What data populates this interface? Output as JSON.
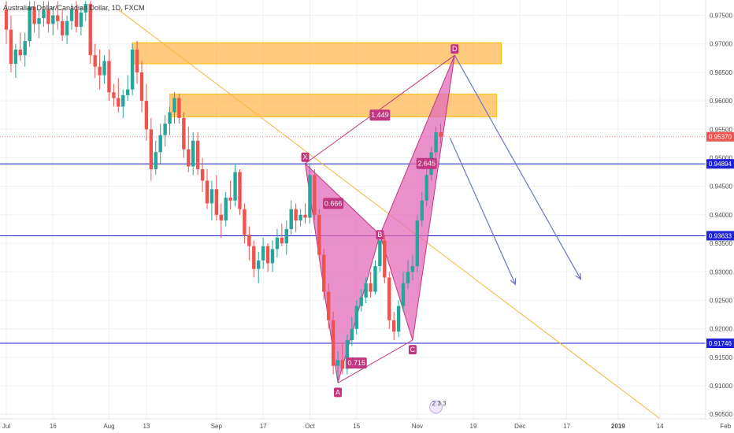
{
  "chart_data": {
    "type": "candlestick",
    "title": "Australian Dollar/Canadian Dollar, 1D, FXCM",
    "x_ticks": [
      "Jul",
      "16",
      "Aug",
      "13",
      "Sep",
      "17",
      "Oct",
      "15",
      "Nov",
      "19",
      "Dec",
      "17",
      "2019",
      "14",
      "Feb"
    ],
    "y_ticks": [
      "0.97500",
      "0.97000",
      "0.96500",
      "0.96000",
      "0.95500",
      "0.95000",
      "0.94500",
      "0.94000",
      "0.93500",
      "0.93000",
      "0.92500",
      "0.92000",
      "0.91500",
      "0.91000",
      "0.90500"
    ],
    "ylim": [
      0.9042,
      0.9777
    ],
    "up_color": "#26a69a",
    "down_color": "#ef5350",
    "candles": [
      {
        "x": "Jul 2",
        "o": 0.976,
        "h": 0.9775,
        "l": 0.97,
        "c": 0.9725
      },
      {
        "x": "Jul 3",
        "o": 0.9725,
        "h": 0.975,
        "l": 0.965,
        "c": 0.9665
      },
      {
        "x": "Jul 4",
        "o": 0.9665,
        "h": 0.97,
        "l": 0.964,
        "c": 0.969
      },
      {
        "x": "Jul 5",
        "o": 0.969,
        "h": 0.972,
        "l": 0.967,
        "c": 0.968
      },
      {
        "x": "Jul 6",
        "o": 0.968,
        "h": 0.972,
        "l": 0.966,
        "c": 0.9705
      },
      {
        "x": "Jul 9",
        "o": 0.9705,
        "h": 0.9775,
        "l": 0.9695,
        "c": 0.9765
      },
      {
        "x": "Jul 10",
        "o": 0.9765,
        "h": 0.9775,
        "l": 0.972,
        "c": 0.9735
      },
      {
        "x": "Jul 11",
        "o": 0.9735,
        "h": 0.976,
        "l": 0.971,
        "c": 0.9745
      },
      {
        "x": "Jul 12",
        "o": 0.9745,
        "h": 0.9775,
        "l": 0.973,
        "c": 0.976
      },
      {
        "x": "Jul 13",
        "o": 0.976,
        "h": 0.9775,
        "l": 0.972,
        "c": 0.9735
      },
      {
        "x": "Jul 16",
        "o": 0.9735,
        "h": 0.9765,
        "l": 0.9715,
        "c": 0.975
      },
      {
        "x": "Jul 17",
        "o": 0.975,
        "h": 0.9775,
        "l": 0.9725,
        "c": 0.974
      },
      {
        "x": "Jul 18",
        "o": 0.974,
        "h": 0.976,
        "l": 0.9705,
        "c": 0.9715
      },
      {
        "x": "Jul 19",
        "o": 0.9715,
        "h": 0.975,
        "l": 0.97,
        "c": 0.974
      },
      {
        "x": "Jul 20",
        "o": 0.974,
        "h": 0.977,
        "l": 0.9725,
        "c": 0.976
      },
      {
        "x": "Jul 23",
        "o": 0.976,
        "h": 0.9775,
        "l": 0.972,
        "c": 0.973
      },
      {
        "x": "Jul 24",
        "o": 0.973,
        "h": 0.9765,
        "l": 0.9715,
        "c": 0.9755
      },
      {
        "x": "Jul 25",
        "o": 0.9755,
        "h": 0.9775,
        "l": 0.974,
        "c": 0.977
      },
      {
        "x": "Jul 26",
        "o": 0.977,
        "h": 0.9775,
        "l": 0.9665,
        "c": 0.968
      },
      {
        "x": "Jul 27",
        "o": 0.968,
        "h": 0.97,
        "l": 0.964,
        "c": 0.966
      },
      {
        "x": "Jul 30",
        "o": 0.966,
        "h": 0.969,
        "l": 0.962,
        "c": 0.9645
      },
      {
        "x": "Jul 31",
        "o": 0.9645,
        "h": 0.968,
        "l": 0.963,
        "c": 0.967
      },
      {
        "x": "Aug 1",
        "o": 0.967,
        "h": 0.969,
        "l": 0.96,
        "c": 0.9615
      },
      {
        "x": "Aug 2",
        "o": 0.9615,
        "h": 0.963,
        "l": 0.959,
        "c": 0.9605
      },
      {
        "x": "Aug 3",
        "o": 0.9605,
        "h": 0.964,
        "l": 0.958,
        "c": 0.959
      },
      {
        "x": "Aug 6",
        "o": 0.959,
        "h": 0.962,
        "l": 0.957,
        "c": 0.961
      },
      {
        "x": "Aug 7",
        "o": 0.961,
        "h": 0.9645,
        "l": 0.96,
        "c": 0.962
      },
      {
        "x": "Aug 8",
        "o": 0.962,
        "h": 0.97,
        "l": 0.961,
        "c": 0.969
      },
      {
        "x": "Aug 9",
        "o": 0.969,
        "h": 0.9705,
        "l": 0.963,
        "c": 0.965
      },
      {
        "x": "Aug 10",
        "o": 0.965,
        "h": 0.967,
        "l": 0.958,
        "c": 0.96
      },
      {
        "x": "Aug 13",
        "o": 0.96,
        "h": 0.963,
        "l": 0.953,
        "c": 0.955
      },
      {
        "x": "Aug 14",
        "o": 0.955,
        "h": 0.957,
        "l": 0.946,
        "c": 0.948
      },
      {
        "x": "Aug 15",
        "o": 0.948,
        "h": 0.953,
        "l": 0.947,
        "c": 0.951
      },
      {
        "x": "Aug 16",
        "o": 0.951,
        "h": 0.956,
        "l": 0.949,
        "c": 0.954
      },
      {
        "x": "Aug 17",
        "o": 0.954,
        "h": 0.9575,
        "l": 0.952,
        "c": 0.956
      },
      {
        "x": "Aug 20",
        "o": 0.956,
        "h": 0.959,
        "l": 0.954,
        "c": 0.958
      },
      {
        "x": "Aug 21",
        "o": 0.958,
        "h": 0.9615,
        "l": 0.956,
        "c": 0.9605
      },
      {
        "x": "Aug 22",
        "o": 0.9605,
        "h": 0.9612,
        "l": 0.956,
        "c": 0.957
      },
      {
        "x": "Aug 23",
        "o": 0.957,
        "h": 0.958,
        "l": 0.95,
        "c": 0.9515
      },
      {
        "x": "Aug 24",
        "o": 0.9515,
        "h": 0.9555,
        "l": 0.9475,
        "c": 0.9485
      },
      {
        "x": "Aug 27",
        "o": 0.9485,
        "h": 0.9545,
        "l": 0.947,
        "c": 0.953
      },
      {
        "x": "Aug 28",
        "o": 0.953,
        "h": 0.9545,
        "l": 0.947,
        "c": 0.948
      },
      {
        "x": "Aug 29",
        "o": 0.948,
        "h": 0.95,
        "l": 0.944,
        "c": 0.946
      },
      {
        "x": "Aug 30",
        "o": 0.946,
        "h": 0.948,
        "l": 0.941,
        "c": 0.942
      },
      {
        "x": "Aug 31",
        "o": 0.942,
        "h": 0.946,
        "l": 0.939,
        "c": 0.9445
      },
      {
        "x": "Sep 3",
        "o": 0.9445,
        "h": 0.947,
        "l": 0.939,
        "c": 0.94
      },
      {
        "x": "Sep 4",
        "o": 0.94,
        "h": 0.942,
        "l": 0.936,
        "c": 0.939
      },
      {
        "x": "Sep 5",
        "o": 0.939,
        "h": 0.944,
        "l": 0.938,
        "c": 0.943
      },
      {
        "x": "Sep 6",
        "o": 0.943,
        "h": 0.946,
        "l": 0.941,
        "c": 0.9425
      },
      {
        "x": "Sep 7",
        "o": 0.9425,
        "h": 0.949,
        "l": 0.9415,
        "c": 0.9475
      },
      {
        "x": "Sep 10",
        "o": 0.9475,
        "h": 0.948,
        "l": 0.94,
        "c": 0.941
      },
      {
        "x": "Sep 11",
        "o": 0.941,
        "h": 0.942,
        "l": 0.935,
        "c": 0.9365
      },
      {
        "x": "Sep 12",
        "o": 0.9365,
        "h": 0.938,
        "l": 0.932,
        "c": 0.9345
      },
      {
        "x": "Sep 13",
        "o": 0.9345,
        "h": 0.9355,
        "l": 0.929,
        "c": 0.9305
      },
      {
        "x": "Sep 14",
        "o": 0.9305,
        "h": 0.9335,
        "l": 0.928,
        "c": 0.932
      },
      {
        "x": "Sep 17",
        "o": 0.932,
        "h": 0.936,
        "l": 0.9305,
        "c": 0.9345
      },
      {
        "x": "Sep 18",
        "o": 0.9345,
        "h": 0.935,
        "l": 0.93,
        "c": 0.9315
      },
      {
        "x": "Sep 19",
        "o": 0.9315,
        "h": 0.9355,
        "l": 0.93,
        "c": 0.934
      },
      {
        "x": "Sep 20",
        "o": 0.934,
        "h": 0.9375,
        "l": 0.9325,
        "c": 0.936
      },
      {
        "x": "Sep 21",
        "o": 0.936,
        "h": 0.9385,
        "l": 0.9345,
        "c": 0.935
      },
      {
        "x": "Sep 24",
        "o": 0.935,
        "h": 0.939,
        "l": 0.933,
        "c": 0.9375
      },
      {
        "x": "Sep 25",
        "o": 0.9375,
        "h": 0.9425,
        "l": 0.9365,
        "c": 0.941
      },
      {
        "x": "Sep 26",
        "o": 0.941,
        "h": 0.942,
        "l": 0.937,
        "c": 0.939
      },
      {
        "x": "Sep 27",
        "o": 0.939,
        "h": 0.941,
        "l": 0.938,
        "c": 0.94
      },
      {
        "x": "Sep 28",
        "o": 0.94,
        "h": 0.942,
        "l": 0.9385,
        "c": 0.9395
      },
      {
        "x": "Oct 1",
        "o": 0.9395,
        "h": 0.949,
        "l": 0.9385,
        "c": 0.947
      },
      {
        "x": "Oct 2",
        "o": 0.947,
        "h": 0.948,
        "l": 0.939,
        "c": 0.94
      },
      {
        "x": "Oct 3",
        "o": 0.94,
        "h": 0.941,
        "l": 0.932,
        "c": 0.933
      },
      {
        "x": "Oct 4",
        "o": 0.933,
        "h": 0.934,
        "l": 0.925,
        "c": 0.9265
      },
      {
        "x": "Oct 5",
        "o": 0.9265,
        "h": 0.928,
        "l": 0.92,
        "c": 0.9215
      },
      {
        "x": "Oct 8",
        "o": 0.9215,
        "h": 0.923,
        "l": 0.912,
        "c": 0.9135
      },
      {
        "x": "Oct 9",
        "o": 0.9135,
        "h": 0.916,
        "l": 0.9105,
        "c": 0.9145
      },
      {
        "x": "Oct 10",
        "o": 0.9145,
        "h": 0.9175,
        "l": 0.912,
        "c": 0.913
      },
      {
        "x": "Oct 11",
        "o": 0.913,
        "h": 0.919,
        "l": 0.912,
        "c": 0.918
      },
      {
        "x": "Oct 12",
        "o": 0.918,
        "h": 0.922,
        "l": 0.917,
        "c": 0.92
      },
      {
        "x": "Oct 15",
        "o": 0.92,
        "h": 0.925,
        "l": 0.919,
        "c": 0.924
      },
      {
        "x": "Oct 16",
        "o": 0.924,
        "h": 0.927,
        "l": 0.923,
        "c": 0.9255
      },
      {
        "x": "Oct 17",
        "o": 0.9255,
        "h": 0.929,
        "l": 0.9245,
        "c": 0.928
      },
      {
        "x": "Oct 18",
        "o": 0.928,
        "h": 0.93,
        "l": 0.9255,
        "c": 0.9265
      },
      {
        "x": "Oct 19",
        "o": 0.9265,
        "h": 0.932,
        "l": 0.926,
        "c": 0.931
      },
      {
        "x": "Oct 22",
        "o": 0.931,
        "h": 0.937,
        "l": 0.93,
        "c": 0.9355
      },
      {
        "x": "Oct 23",
        "o": 0.9355,
        "h": 0.9365,
        "l": 0.928,
        "c": 0.929
      },
      {
        "x": "Oct 24",
        "o": 0.929,
        "h": 0.93,
        "l": 0.92,
        "c": 0.9215
      },
      {
        "x": "Oct 25",
        "o": 0.9215,
        "h": 0.923,
        "l": 0.918,
        "c": 0.9195
      },
      {
        "x": "Oct 26",
        "o": 0.9195,
        "h": 0.925,
        "l": 0.9185,
        "c": 0.924
      },
      {
        "x": "Oct 29",
        "o": 0.924,
        "h": 0.93,
        "l": 0.923,
        "c": 0.928
      },
      {
        "x": "Oct 30",
        "o": 0.928,
        "h": 0.932,
        "l": 0.927,
        "c": 0.93
      },
      {
        "x": "Oct 31",
        "o": 0.93,
        "h": 0.933,
        "l": 0.9285,
        "c": 0.931
      },
      {
        "x": "Nov 1",
        "o": 0.931,
        "h": 0.94,
        "l": 0.93,
        "c": 0.939
      },
      {
        "x": "Nov 2",
        "o": 0.939,
        "h": 0.944,
        "l": 0.938,
        "c": 0.9425
      },
      {
        "x": "Nov 5",
        "o": 0.9425,
        "h": 0.948,
        "l": 0.9415,
        "c": 0.947
      },
      {
        "x": "Nov 6",
        "o": 0.947,
        "h": 0.952,
        "l": 0.946,
        "c": 0.951
      },
      {
        "x": "Nov 7",
        "o": 0.951,
        "h": 0.9555,
        "l": 0.95,
        "c": 0.9545
      },
      {
        "x": "Nov 8",
        "o": 0.9545,
        "h": 0.956,
        "l": 0.9525,
        "c": 0.9537
      }
    ],
    "zones": [
      {
        "y_top": 0.9702,
        "y_bottom": 0.9665,
        "color": "#ffa726",
        "x_start": "Aug 8",
        "x_end": "Nov 27"
      },
      {
        "y_top": 0.9612,
        "y_bottom": 0.9572,
        "color": "#ffa726",
        "x_start": "Aug 20",
        "x_end": "Nov 26"
      }
    ],
    "horizontal_lines": [
      {
        "value": 0.94894,
        "label": "0.94894",
        "color": "#1e22d6"
      },
      {
        "value": 0.93633,
        "label": "0.93633",
        "color": "#1e22d6"
      },
      {
        "value": 0.91746,
        "label": "0.91746",
        "color": "#1e22d6"
      }
    ],
    "current_price": {
      "value": 0.9537,
      "label": "0.95370",
      "color": "#ef5350"
    },
    "trendline": {
      "x1": "Aug 3",
      "y1": 0.976,
      "x2": "Jan 13",
      "y2": 0.9042,
      "color": "#f5b63e"
    },
    "harmonic_pattern": {
      "points": [
        {
          "label": "X",
          "x": "Sep 28",
          "y": 0.949
        },
        {
          "label": "A",
          "x": "Oct 9",
          "y": 0.9105
        },
        {
          "label": "B",
          "x": "Oct 22",
          "y": 0.9365
        },
        {
          "label": "C",
          "x": "Oct 31",
          "y": 0.918
        },
        {
          "label": "D",
          "x": "Nov 13",
          "y": 0.968
        }
      ],
      "ratios": [
        {
          "label": "1.449",
          "x": "Oct 22",
          "y": 0.9575
        },
        {
          "label": "0.666",
          "x": "Oct 6",
          "y": 0.942
        },
        {
          "label": "0.715",
          "x": "Oct 15",
          "y": 0.914
        },
        {
          "label": "2.645",
          "x": "Nov 3",
          "y": 0.949
        }
      ],
      "fill_color": "#e36bb8",
      "line_color": "#c0367f"
    },
    "arrows": [
      {
        "x1": "Nov 13",
        "y1": 0.968,
        "x2": "Dec 20",
        "y2": 0.9287
      },
      {
        "x1": "Nov 12",
        "y1": 0.9535,
        "x2": "Nov 30",
        "y2": 0.9278
      }
    ],
    "badge": {
      "label": "2 3 3"
    }
  }
}
